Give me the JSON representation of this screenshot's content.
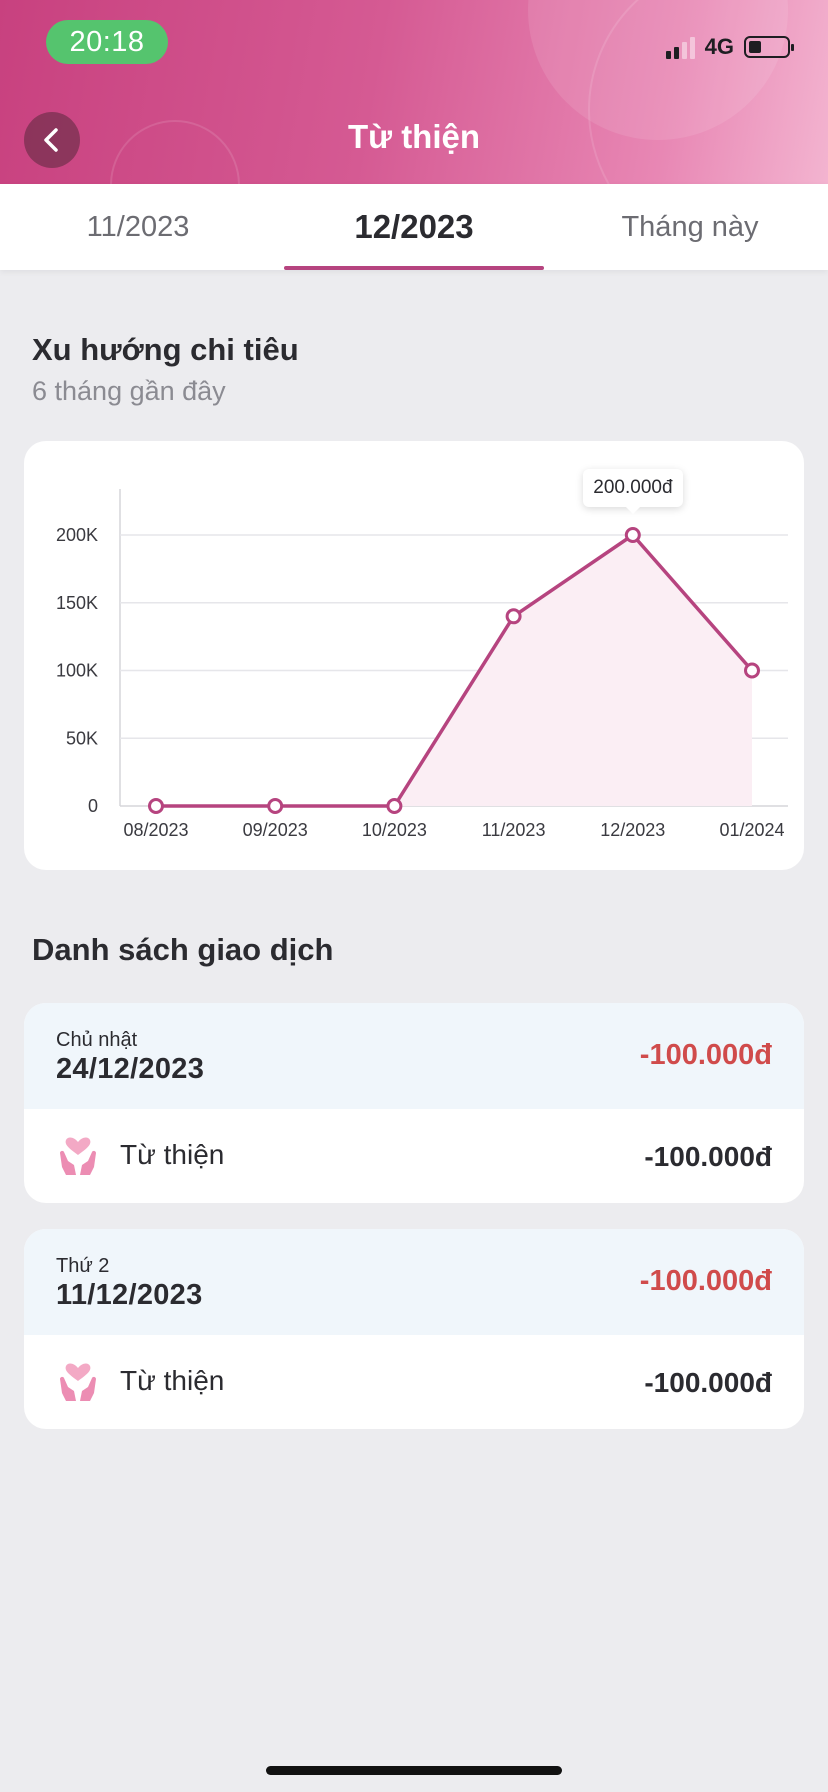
{
  "status_bar": {
    "time": "20:18",
    "network": "4G"
  },
  "header": {
    "title": "Từ thiện",
    "back_icon": "chevron-left-icon"
  },
  "tabs": [
    {
      "label": "11/2023",
      "active": false
    },
    {
      "label": "12/2023",
      "active": true
    },
    {
      "label": "Tháng này",
      "active": false
    }
  ],
  "trend": {
    "title": "Xu hướng chi tiêu",
    "subtitle": "6 tháng gần đây"
  },
  "chart_data": {
    "type": "area",
    "categories": [
      "08/2023",
      "09/2023",
      "10/2023",
      "11/2023",
      "12/2023",
      "01/2024"
    ],
    "values": [
      0,
      0,
      0,
      140000,
      200000,
      100000
    ],
    "yticks": [
      0,
      50000,
      100000,
      150000,
      200000
    ],
    "ytick_labels": [
      "0",
      "50K",
      "100K",
      "150K",
      "200K"
    ],
    "ylim": [
      0,
      200000
    ],
    "grid": true,
    "line_color": "#b6447f",
    "fill_color": "#fbeef4",
    "highlight_index": 4,
    "tooltip": "200.000đ"
  },
  "transactions": {
    "title": "Danh sách giao dịch",
    "groups": [
      {
        "day_label": "Chủ nhật",
        "date": "24/12/2023",
        "total": "-100.000đ",
        "items": [
          {
            "category": "Từ thiện",
            "amount": "-100.000đ",
            "icon": "charity-heart-hands-icon"
          }
        ]
      },
      {
        "day_label": "Thứ 2",
        "date": "11/12/2023",
        "total": "-100.000đ",
        "items": [
          {
            "category": "Từ thiện",
            "amount": "-100.000đ",
            "icon": "charity-heart-hands-icon"
          }
        ]
      }
    ]
  },
  "colors": {
    "accent": "#b6447f",
    "negative": "#d04b4b",
    "status_green": "#55c46e"
  }
}
